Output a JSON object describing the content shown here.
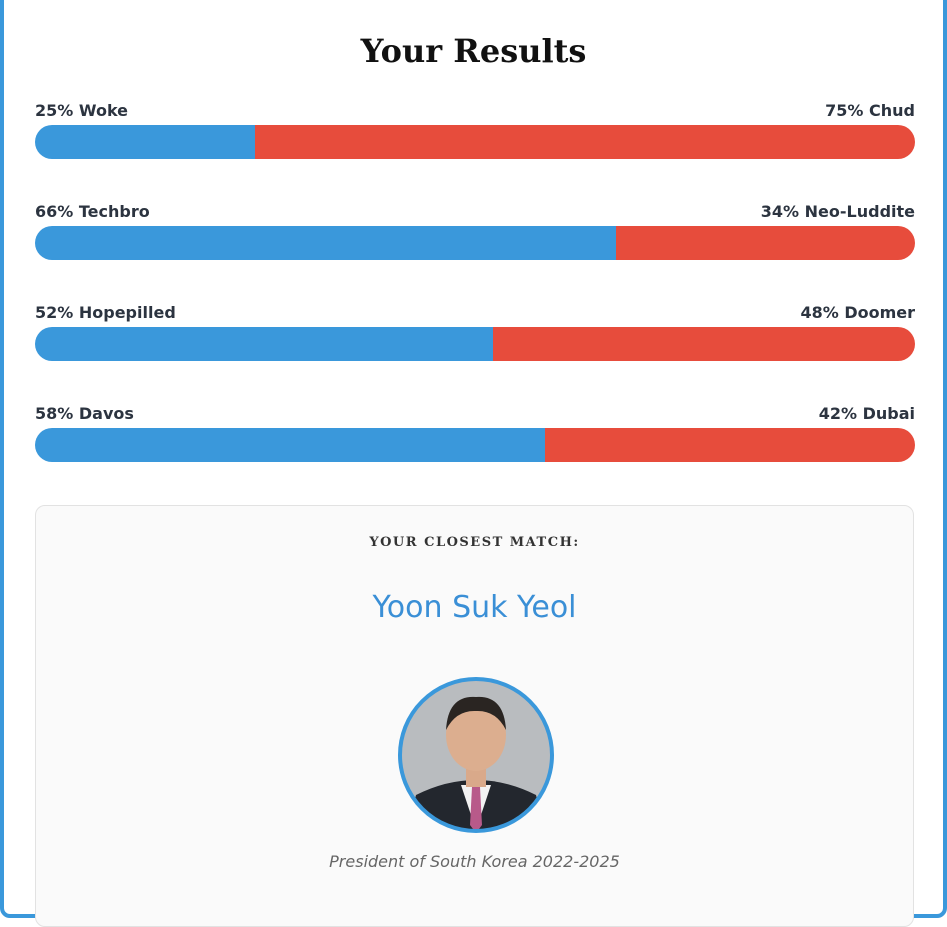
{
  "title": "Your Results",
  "scales": [
    {
      "left_label": "25% Woke",
      "right_label": "75% Chud",
      "left": 25,
      "right": 75
    },
    {
      "left_label": "66% Techbro",
      "right_label": "34% Neo-Luddite",
      "left": 66,
      "right": 34
    },
    {
      "left_label": "52% Hopepilled",
      "right_label": "48% Doomer",
      "left": 52,
      "right": 48
    },
    {
      "left_label": "58% Davos",
      "right_label": "42% Dubai",
      "left": 58,
      "right": 42
    }
  ],
  "match": {
    "heading": "YOUR CLOSEST MATCH:",
    "name": "Yoon Suk Yeol",
    "caption": "President of South Korea 2022-2025"
  }
}
